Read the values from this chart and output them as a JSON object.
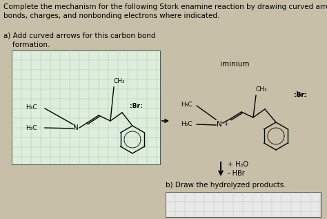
{
  "title_text": "Complete the mechanism for the following Stork enamine reaction by drawing curved arrows, atoms,\nbonds, charges, and nonbonding electrons where indicated.",
  "part_a_label": "a) Add curved arrows for this carbon bond\n    formation.",
  "part_b_label": "b) Draw the hydrolyzed products.",
  "iminium_label": "iminium",
  "arrow_label1": "+ H₂O",
  "arrow_label2": "- HBr",
  "bg_color": "#c8bfa8",
  "box_bg": "#ddeedd",
  "grid_color": "#aaccaa",
  "box2_bg": "#e8e8e8",
  "grid2_color": "#c0c0c0",
  "title_fontsize": 7.5,
  "label_fontsize": 7.5,
  "mol_fontsize": 6.5,
  "br_fontsize": 6.5
}
